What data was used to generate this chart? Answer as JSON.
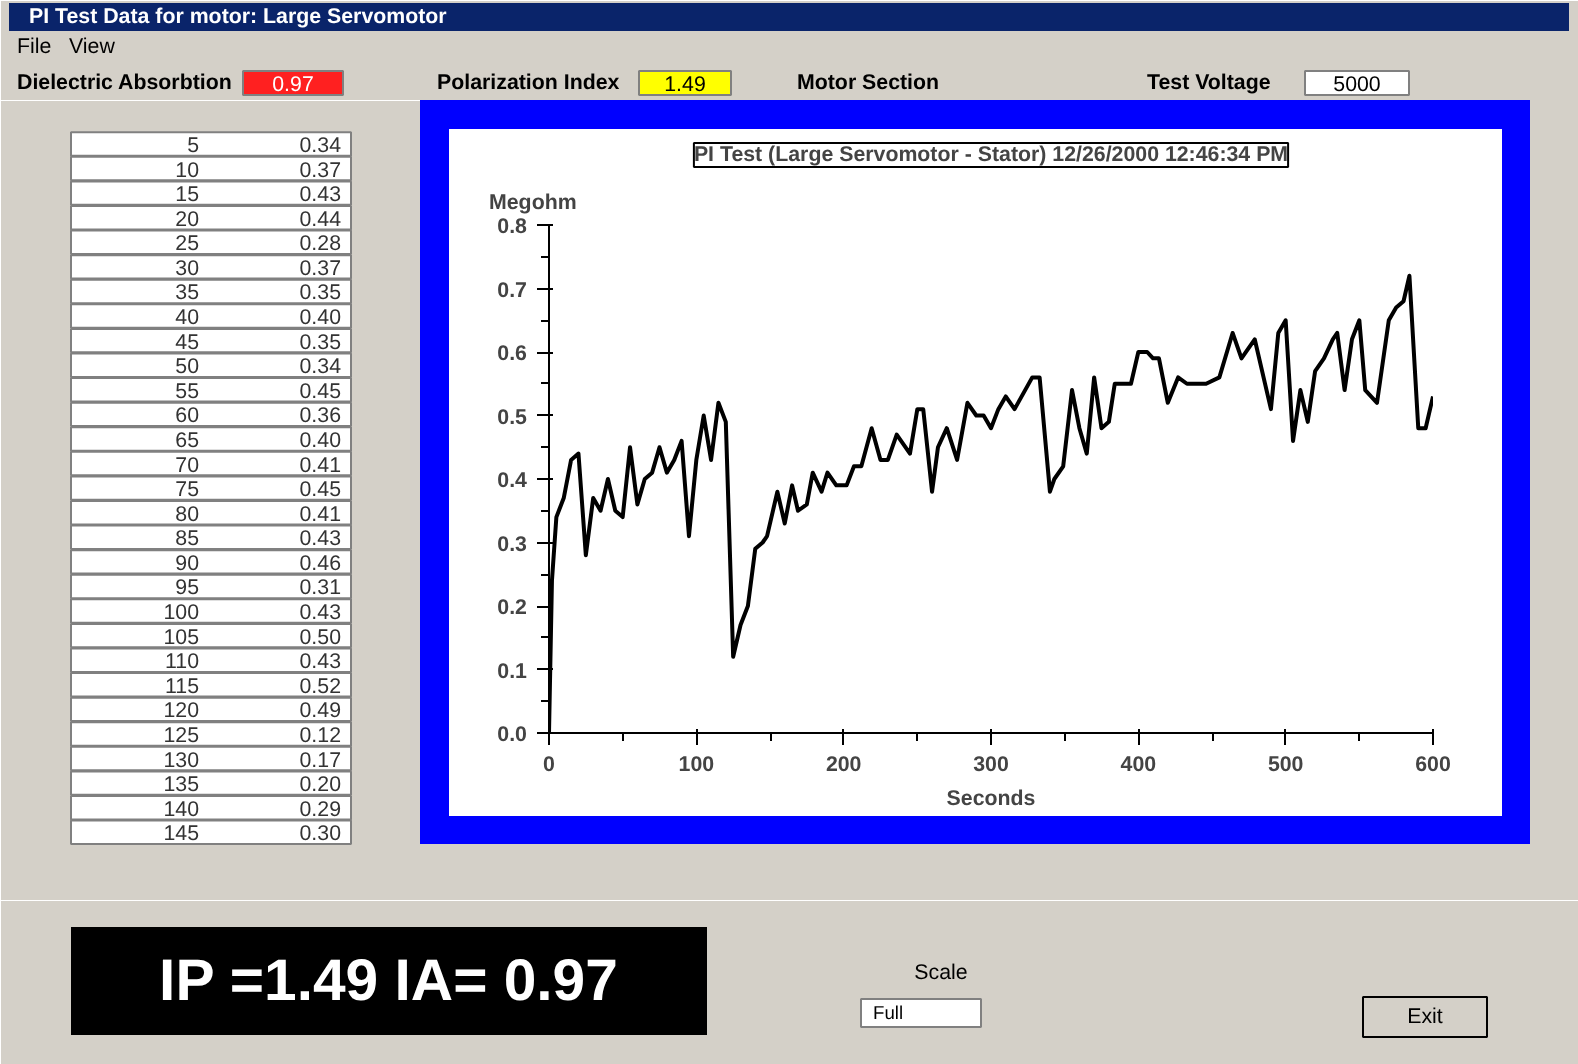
{
  "chart_data": {
    "type": "line",
    "title": "PI Test (Large Servomotor - Stator) 12/26/2000 12:46:34 PM",
    "xlabel": "Seconds",
    "ylabel": "Megohm",
    "annotations": [
      "PI Test Data for motor: Large Servomotor",
      "File",
      "View",
      "Dielectric Absorbtion",
      "0.97",
      "Polarization Index",
      "1.49",
      "Motor Section",
      "Test Voltage",
      "5000",
      "Scale",
      "Full",
      "Exit",
      "IP =1.49 IA= 0.97",
      "5",
      "0.34",
      "10",
      "0.37",
      "15",
      "0.43",
      "20",
      "0.44",
      "25",
      "0.28",
      "30",
      "0.37",
      "35",
      "0.35",
      "40",
      "0.40",
      "45",
      "0.35",
      "50",
      "0.34",
      "55",
      "0.45",
      "60",
      "0.36",
      "65",
      "0.40",
      "70",
      "0.41",
      "75",
      "0.45",
      "80",
      "0.41",
      "85",
      "0.43",
      "90",
      "0.46",
      "95",
      "0.31",
      "100",
      "0.43",
      "105",
      "0.50",
      "110",
      "0.43",
      "115",
      "0.52",
      "120",
      "0.49",
      "125",
      "0.12",
      "130",
      "0.17",
      "135",
      "0.20",
      "140",
      "0.29",
      "145",
      "0.30"
    ],
    "x": [
      0,
      2,
      5,
      10,
      15,
      20,
      25,
      30,
      35,
      40,
      45,
      50,
      55,
      60,
      65,
      70,
      75,
      80,
      85,
      90,
      95,
      100,
      105,
      110,
      115,
      120,
      125,
      130,
      135,
      140,
      145,
      148,
      155,
      160,
      165,
      169,
      175,
      179,
      185,
      189,
      195,
      202,
      207,
      212,
      219,
      225,
      230,
      236,
      245,
      250,
      254,
      260,
      264,
      270,
      277,
      284,
      290,
      295,
      300,
      305,
      310,
      316,
      328,
      333,
      340,
      343,
      349,
      355,
      360,
      365,
      370,
      375,
      380,
      384,
      390,
      395,
      400,
      406,
      410,
      414,
      420,
      427,
      433,
      446,
      455,
      464,
      470,
      479,
      490,
      495,
      500,
      505,
      510,
      515,
      520,
      526,
      532,
      535,
      540,
      545,
      550,
      554,
      562,
      570,
      575,
      580,
      584,
      590,
      595,
      600
    ],
    "series": [
      {
        "color": "#000000",
        "values": [
          0.0,
          0.24,
          0.34,
          0.37,
          0.43,
          0.44,
          0.28,
          0.37,
          0.35,
          0.4,
          0.35,
          0.34,
          0.45,
          0.36,
          0.4,
          0.41,
          0.45,
          0.41,
          0.43,
          0.46,
          0.31,
          0.43,
          0.5,
          0.43,
          0.52,
          0.49,
          0.12,
          0.17,
          0.2,
          0.29,
          0.3,
          0.31,
          0.38,
          0.33,
          0.39,
          0.35,
          0.36,
          0.41,
          0.38,
          0.41,
          0.39,
          0.39,
          0.42,
          0.42,
          0.48,
          0.43,
          0.43,
          0.47,
          0.44,
          0.51,
          0.51,
          0.38,
          0.45,
          0.48,
          0.43,
          0.52,
          0.5,
          0.5,
          0.48,
          0.51,
          0.53,
          0.51,
          0.56,
          0.56,
          0.38,
          0.4,
          0.42,
          0.54,
          0.48,
          0.44,
          0.56,
          0.48,
          0.49,
          0.55,
          0.55,
          0.55,
          0.6,
          0.6,
          0.59,
          0.59,
          0.52,
          0.56,
          0.55,
          0.55,
          0.56,
          0.63,
          0.59,
          0.62,
          0.51,
          0.63,
          0.65,
          0.46,
          0.54,
          0.49,
          0.57,
          0.59,
          0.62,
          0.63,
          0.54,
          0.62,
          0.65,
          0.54,
          0.52,
          0.65,
          0.67,
          0.68,
          0.72,
          0.48,
          0.48,
          0.53
        ]
      }
    ],
    "xlim": [
      0,
      600
    ],
    "ylim": [
      0,
      0.8
    ],
    "xticks": [
      0,
      {
        "value": 50,
        "label": null
      },
      100,
      {
        "value": 150,
        "label": null
      },
      200,
      {
        "value": 250,
        "label": null
      },
      300,
      {
        "value": 350,
        "label": null
      },
      400,
      {
        "value": 450,
        "label": null
      },
      500,
      {
        "value": 550,
        "label": null
      },
      600
    ],
    "yticks": [
      {
        "value": 0.0,
        "label": "0.0"
      },
      {
        "value": 0.05,
        "label": null
      },
      {
        "value": 0.1,
        "label": "0.1"
      },
      {
        "value": 0.15,
        "label": null
      },
      {
        "value": 0.2,
        "label": "0.2"
      },
      {
        "value": 0.25,
        "label": null
      },
      {
        "value": 0.3,
        "label": "0.3"
      },
      {
        "value": 0.35,
        "label": null
      },
      {
        "value": 0.4,
        "label": "0.4"
      },
      {
        "value": 0.45,
        "label": null
      },
      {
        "value": 0.5,
        "label": "0.5"
      },
      {
        "value": 0.55,
        "label": null
      },
      {
        "value": 0.6,
        "label": "0.6"
      },
      {
        "value": 0.65,
        "label": null
      },
      {
        "value": 0.7,
        "label": "0.7"
      },
      {
        "value": 0.75,
        "label": null
      },
      {
        "value": 0.8,
        "label": "0.8"
      }
    ],
    "grid": false,
    "marker": "none",
    "line_style": "solid"
  }
}
